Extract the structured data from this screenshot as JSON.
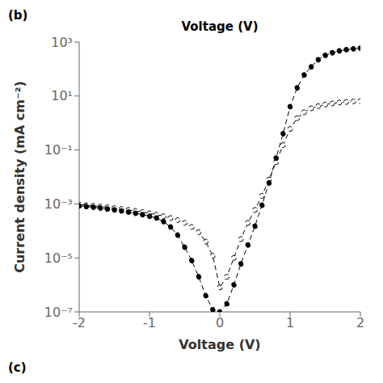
{
  "chart_data": {
    "type": "line",
    "title": "Voltage (V)",
    "x_label": "Voltage (V)",
    "y_label": "Current density (mA cm⁻²)",
    "annotations": [
      "(b)",
      "(c)"
    ],
    "log": "y",
    "grid": false,
    "x": [
      -2.0,
      -1.9,
      -1.8,
      -1.7,
      -1.6,
      -1.5,
      -1.4,
      -1.3,
      -1.2,
      -1.1,
      -1.0,
      -0.9,
      -0.8,
      -0.7,
      -0.6,
      -0.5,
      -0.4,
      -0.3,
      -0.2,
      -0.1,
      0.0,
      0.1,
      0.2,
      0.3,
      0.4,
      0.5,
      0.6,
      0.7,
      0.8,
      0.9,
      1.0,
      1.1,
      1.2,
      1.3,
      1.4,
      1.5,
      1.6,
      1.7,
      1.8,
      1.9,
      2.0
    ],
    "series": [
      {
        "color": "black",
        "marker": "open_circle",
        "line_style": "dashed",
        "values": [
          0.00095,
          0.0009,
          0.00085,
          0.0008,
          0.00075,
          0.0007,
          0.00065,
          0.0006,
          0.00055,
          0.0005,
          0.00045,
          0.0004,
          0.00035,
          0.0003,
          0.00025,
          0.0002,
          0.00014,
          9e-05,
          4e-05,
          1.2e-05,
          8e-07,
          2e-06,
          1e-05,
          5e-05,
          0.0002,
          0.0006,
          0.002,
          0.008,
          0.035,
          0.15,
          0.6,
          1.5,
          2.5,
          3.5,
          4.2,
          4.8,
          5.3,
          5.7,
          6.0,
          6.3,
          6.5
        ]
      },
      {
        "color": "black",
        "marker": "circle",
        "line_style": "dashed",
        "values": [
          0.00085,
          0.0008,
          0.00075,
          0.0007,
          0.00065,
          0.0006,
          0.00055,
          0.0005,
          0.00045,
          0.0004,
          0.00035,
          0.0003,
          0.00022,
          0.00014,
          7e-05,
          2.5e-05,
          8e-06,
          2e-06,
          4e-07,
          1.2e-07,
          1e-07,
          2e-07,
          1e-06,
          6e-06,
          3e-05,
          0.00015,
          0.0009,
          0.006,
          0.05,
          0.4,
          4.0,
          20.0,
          60.0,
          120.0,
          220.0,
          320.0,
          400.0,
          470.0,
          520.0,
          560.0,
          590.0
        ]
      }
    ],
    "xlim": [
      -2,
      2
    ],
    "xticks": [
      -2,
      -1,
      0,
      1,
      2
    ],
    "ylim": [
      1e-07,
      1000
    ],
    "yticks": [
      {
        "value": 1e-07,
        "label": "10⁻⁷"
      },
      {
        "value": 1e-05,
        "label": "10⁻⁵"
      },
      {
        "value": 0.001,
        "label": "10⁻³"
      },
      {
        "value": 0.1,
        "label": "10⁻¹"
      },
      {
        "value": 10,
        "label": "10¹"
      },
      {
        "value": 1000,
        "label": "10³"
      }
    ]
  }
}
